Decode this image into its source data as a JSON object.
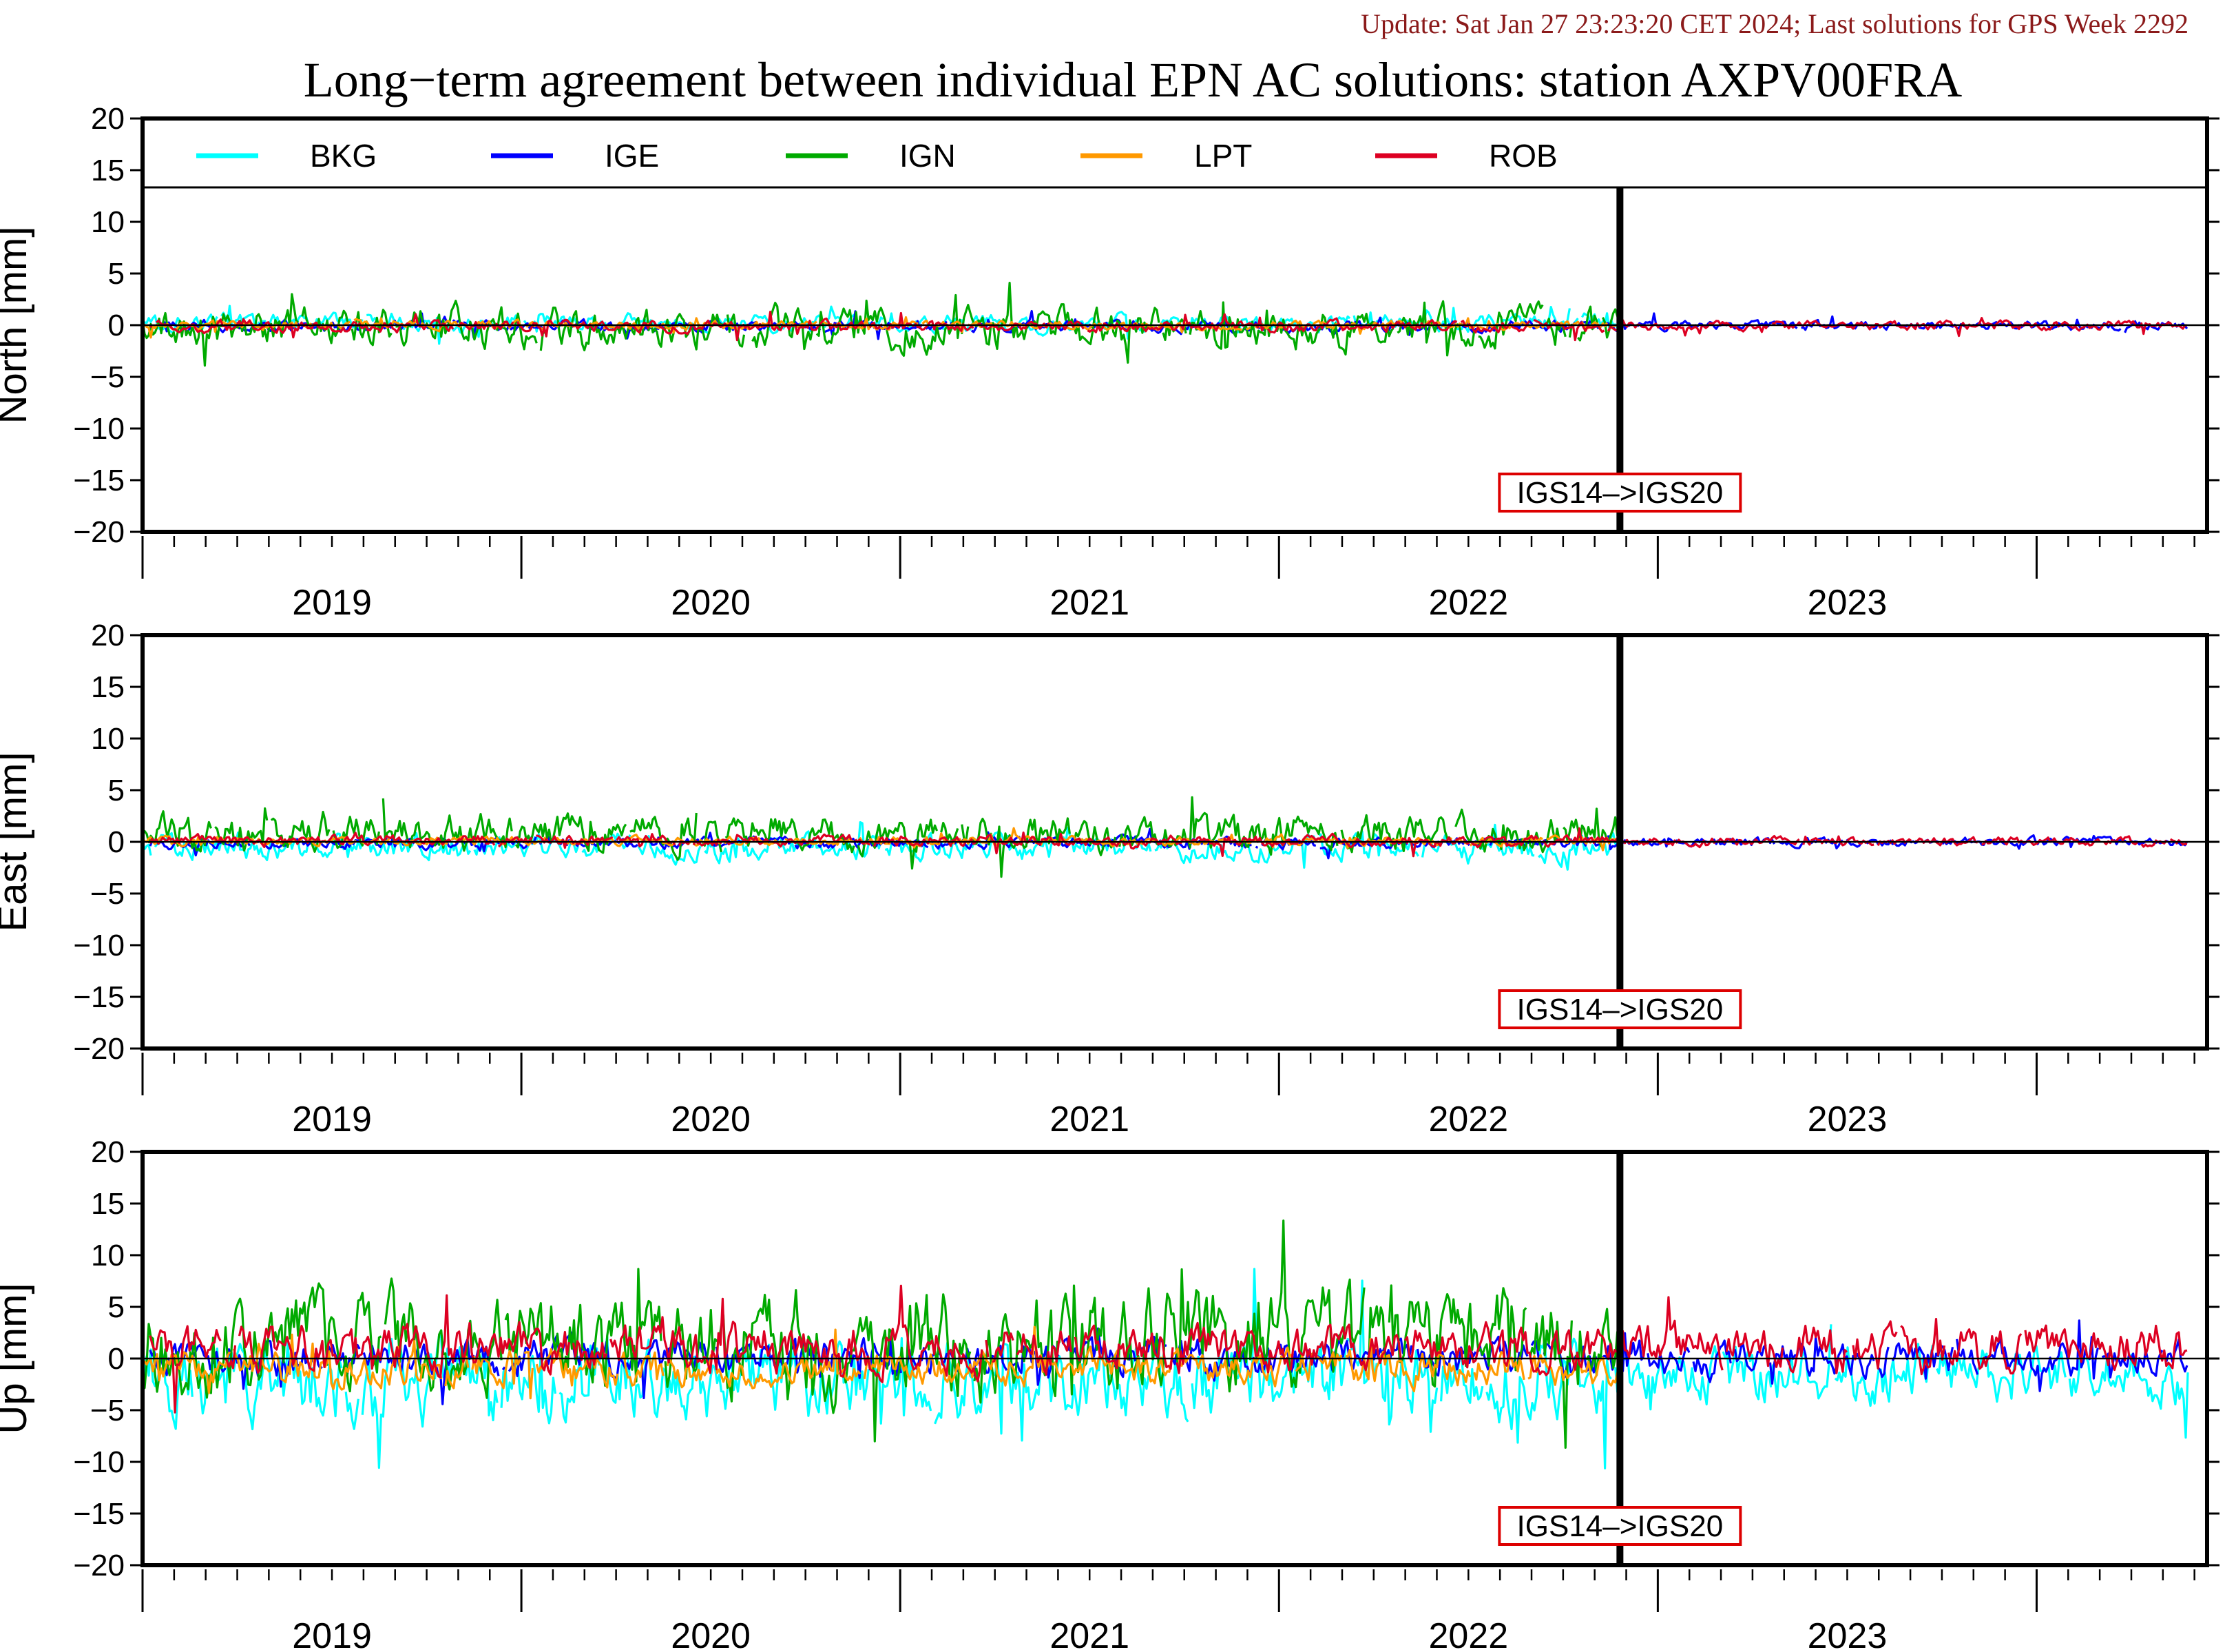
{
  "header": {
    "update": "Update: Sat Jan 27 23:23:20 CET 2024; Last solutions for GPS Week 2292",
    "title": "Long−term agreement between individual EPN AC solutions: station AXPV00FRA"
  },
  "colors": {
    "BKG": "#00ffff",
    "IGE": "#0000ff",
    "IGN": "#00aa00",
    "LPT": "#ff9900",
    "ROB": "#dd0022"
  },
  "chart_data": [
    {
      "type": "line",
      "panel": "north",
      "ylabel": "North [mm]",
      "ylim": [
        -20,
        20
      ],
      "yticks": [
        20,
        15,
        10,
        5,
        0,
        -5,
        -10,
        -15,
        -20
      ],
      "ytick_labels": [
        "20",
        "15",
        "10",
        "5",
        "0",
        "−5",
        "−10",
        "−15",
        "−20"
      ],
      "xlim": [
        2018.5,
        2023.95
      ],
      "x_year_labels": [
        "2019",
        "2020",
        "2021",
        "2022",
        "2023"
      ],
      "legend": [
        {
          "name": "BKG",
          "color": "#00ffff"
        },
        {
          "name": "IGE",
          "color": "#0000ff"
        },
        {
          "name": "IGN",
          "color": "#00aa00"
        },
        {
          "name": "LPT",
          "color": "#ff9900"
        },
        {
          "name": "ROB",
          "color": "#dd0022"
        }
      ],
      "legend_placement": "top",
      "reference_change": {
        "x": 2022.4,
        "label": "IGS14–>IGS20"
      },
      "series": [
        {
          "name": "BKG",
          "amplitude": 0.6,
          "bias": 0.2,
          "end": 2022.4
        },
        {
          "name": "IGE",
          "amplitude": 0.4,
          "bias": -0.1,
          "end": 2023.9
        },
        {
          "name": "IGN",
          "amplitude": 1.4,
          "bias": -0.3,
          "end": 2022.4
        },
        {
          "name": "LPT",
          "amplitude": 0.3,
          "bias": 0.0,
          "end": 2022.4
        },
        {
          "name": "ROB",
          "amplitude": 0.4,
          "bias": -0.1,
          "end": 2023.9
        }
      ]
    },
    {
      "type": "line",
      "panel": "east",
      "ylabel": "East [mm]",
      "ylim": [
        -20,
        20
      ],
      "yticks": [
        20,
        15,
        10,
        5,
        0,
        -5,
        -10,
        -15,
        -20
      ],
      "ytick_labels": [
        "20",
        "15",
        "10",
        "5",
        "0",
        "−5",
        "−10",
        "−15",
        "−20"
      ],
      "xlim": [
        2018.5,
        2023.95
      ],
      "x_year_labels": [
        "2019",
        "2020",
        "2021",
        "2022",
        "2023"
      ],
      "reference_change": {
        "x": 2022.4,
        "label": "IGS14–>IGS20"
      },
      "series": [
        {
          "name": "BKG",
          "amplitude": 0.9,
          "bias": -0.6,
          "end": 2022.4
        },
        {
          "name": "IGE",
          "amplitude": 0.4,
          "bias": -0.1,
          "end": 2023.9
        },
        {
          "name": "IGN",
          "amplitude": 1.3,
          "bias": 0.8,
          "end": 2022.4
        },
        {
          "name": "LPT",
          "amplitude": 0.3,
          "bias": 0.1,
          "end": 2022.4
        },
        {
          "name": "ROB",
          "amplitude": 0.4,
          "bias": 0.1,
          "end": 2023.9
        }
      ]
    },
    {
      "type": "line",
      "panel": "up",
      "ylabel": "Up [mm]",
      "ylim": [
        -20,
        20
      ],
      "yticks": [
        20,
        15,
        10,
        5,
        0,
        -5,
        -10,
        -15,
        -20
      ],
      "ytick_labels": [
        "20",
        "15",
        "10",
        "5",
        "0",
        "−5",
        "−10",
        "−15",
        "−20"
      ],
      "xlim": [
        2018.5,
        2023.95
      ],
      "x_year_labels": [
        "2019",
        "2020",
        "2021",
        "2022",
        "2023"
      ],
      "reference_change": {
        "x": 2022.4,
        "label": "IGS14–>IGS20"
      },
      "series": [
        {
          "name": "BKG",
          "amplitude": 2.8,
          "bias": -2.2,
          "end": 2023.9
        },
        {
          "name": "IGE",
          "amplitude": 1.3,
          "bias": 0.0,
          "end": 2023.9
        },
        {
          "name": "IGN",
          "amplitude": 3.6,
          "bias": 1.6,
          "end": 2022.4
        },
        {
          "name": "LPT",
          "amplitude": 1.2,
          "bias": -0.9,
          "end": 2022.4
        },
        {
          "name": "ROB",
          "amplitude": 1.6,
          "bias": 1.0,
          "end": 2023.9
        }
      ]
    }
  ]
}
